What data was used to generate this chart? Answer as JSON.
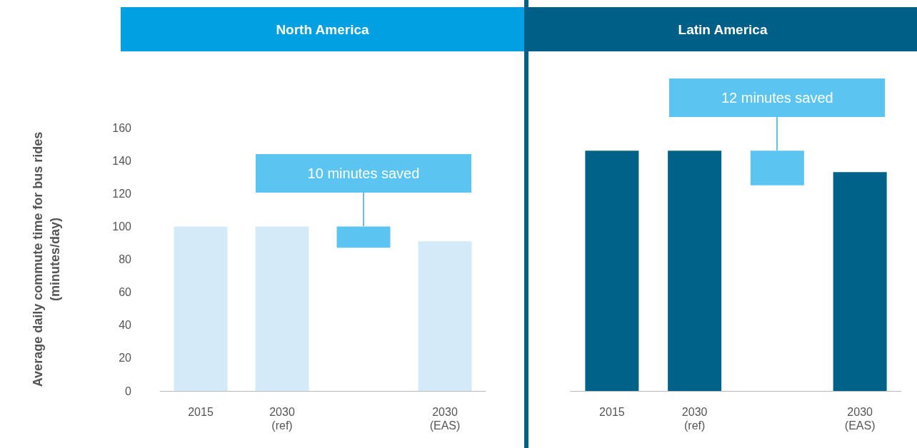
{
  "chart_data": [
    {
      "type": "bar",
      "title": "North America",
      "ylabel": "Average daily commute time for bus rides\n(minutes/day)",
      "categories": [
        "2015",
        "2030\n(ref)",
        null,
        "2030\n(EAS)"
      ],
      "values": [
        100,
        100,
        13,
        91
      ],
      "base": [
        0,
        0,
        87,
        0
      ],
      "colors": [
        "#d4eaf9",
        "#d4eaf9",
        "#5bc4f1",
        "#d4eaf9"
      ],
      "ylim": [
        0,
        160
      ],
      "yticks": [
        0,
        20,
        40,
        60,
        80,
        100,
        120,
        140,
        160
      ],
      "grid": false,
      "annotations": [
        "10 minutes saved"
      ]
    },
    {
      "type": "bar",
      "title": "Latin America",
      "categories": [
        "2015",
        "2030\n(ref)",
        null,
        "2030\n(EAS)"
      ],
      "values": [
        146,
        146,
        21,
        133
      ],
      "base": [
        0,
        0,
        125,
        0
      ],
      "colors": [
        "#006189",
        "#006189",
        "#5bc4f1",
        "#006189"
      ],
      "ylim": [
        0,
        160
      ],
      "yticks": [
        0,
        20,
        40,
        60,
        80,
        100,
        120,
        140,
        160
      ],
      "grid": false,
      "tick_labels": "x",
      "annotations": [
        "12 minutes saved"
      ]
    }
  ]
}
